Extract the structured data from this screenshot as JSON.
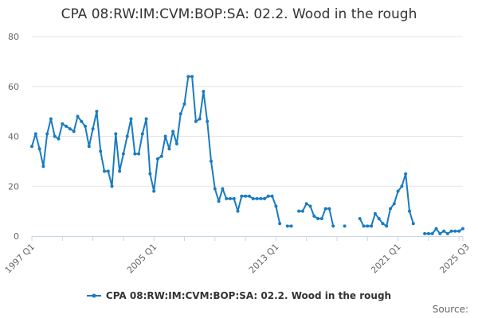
{
  "title": "CPA 08:RW:IM:CVM:BOP:SA: 02.2. Wood in the rough",
  "source_label": "Source:",
  "chart_data": {
    "type": "line",
    "title": "CPA 08:RW:IM:CVM:BOP:SA: 02.2. Wood in the rough",
    "xlabel": "",
    "ylabel": "",
    "ylim": [
      0,
      80
    ],
    "yticks": [
      0,
      20,
      40,
      60,
      80
    ],
    "grid": true,
    "legend_position": "bottom",
    "color": "#1a7bbf",
    "x_tick_labels": [
      "1997 Q1",
      "2005 Q1",
      "2013 Q1",
      "2021 Q1",
      "2025 Q3"
    ],
    "x_tick_quarter_index": [
      0,
      32,
      64,
      96,
      114
    ],
    "start_quarter": "1997 Q1",
    "series": [
      {
        "name": "CPA 08:RW:IM:CVM:BOP:SA: 02.2. Wood in the rough",
        "values": [
          36,
          41,
          35,
          28,
          41,
          47,
          40,
          39,
          45,
          44,
          43,
          42,
          48,
          46,
          44,
          36,
          43,
          50,
          34,
          26,
          26,
          20,
          41,
          26,
          33,
          40,
          47,
          33,
          33,
          41,
          47,
          25,
          18,
          31,
          32,
          40,
          35,
          42,
          37,
          49,
          53,
          64,
          64,
          46,
          47,
          58,
          46,
          30,
          19,
          14,
          19,
          15,
          15,
          15,
          10,
          16,
          16,
          16,
          15,
          15,
          15,
          15,
          16,
          16,
          12,
          5,
          null,
          4,
          4,
          null,
          10,
          10,
          13,
          12,
          8,
          7,
          7,
          11,
          11,
          4,
          null,
          null,
          4,
          null,
          null,
          null,
          7,
          4,
          4,
          4,
          9,
          7,
          5,
          4,
          11,
          13,
          18,
          20,
          25,
          10,
          5,
          null,
          null,
          1,
          1,
          1,
          3,
          1,
          2,
          1,
          2,
          2,
          2,
          3
        ]
      }
    ]
  }
}
